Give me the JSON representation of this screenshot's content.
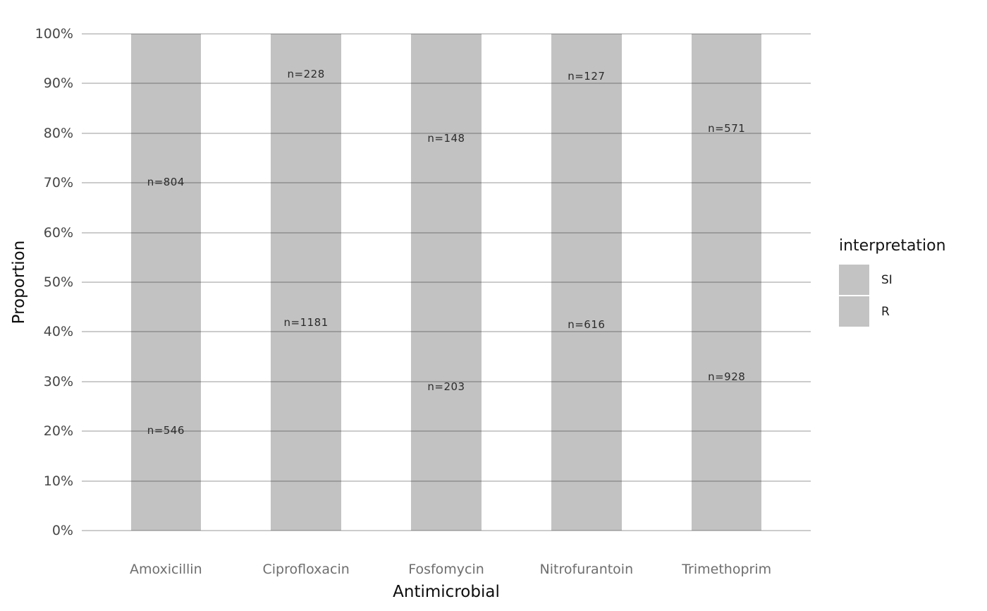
{
  "chart_data": {
    "type": "bar",
    "subtype": "stacked-100-percent",
    "title": "",
    "xlabel": "Antimicrobial",
    "ylabel": "Proportion",
    "categories": [
      "Amoxicillin",
      "Ciprofloxacin",
      "Fosfomycin",
      "Nitrofurantoin",
      "Trimethoprim"
    ],
    "series": [
      {
        "name": "SI",
        "stack_position": "top",
        "counts": [
          804,
          228,
          148,
          127,
          571
        ],
        "labels": [
          "n=804",
          "n=228",
          "n=148",
          "n=127",
          "n=571"
        ]
      },
      {
        "name": "R",
        "stack_position": "bottom",
        "counts": [
          546,
          1181,
          203,
          616,
          928
        ],
        "labels": [
          "n=546",
          "n=1181",
          "n=203",
          "n=616",
          "n=928"
        ]
      }
    ],
    "y_ticks": [
      "0%",
      "10%",
      "20%",
      "30%",
      "40%",
      "50%",
      "60%",
      "70%",
      "80%",
      "90%",
      "100%"
    ],
    "ylim": [
      0,
      1
    ],
    "grid": "horizontal-major",
    "legend": {
      "title": "interpretation",
      "position": "right",
      "entries": [
        {
          "label": "SI",
          "swatch": "#c3c3c3"
        },
        {
          "label": "R",
          "swatch": "#c3c3c3"
        }
      ]
    },
    "colors": {
      "bar_fill": "#c2c2c2",
      "gridline": "rgba(0,0,0,0.20)",
      "panel_bg": "#ffffff",
      "y_tick_text": "#474747",
      "x_tick_text": "#6e6e6e",
      "axis_title_text": "#0d0d0d",
      "bar_label_text": "#2b2b2b"
    }
  }
}
